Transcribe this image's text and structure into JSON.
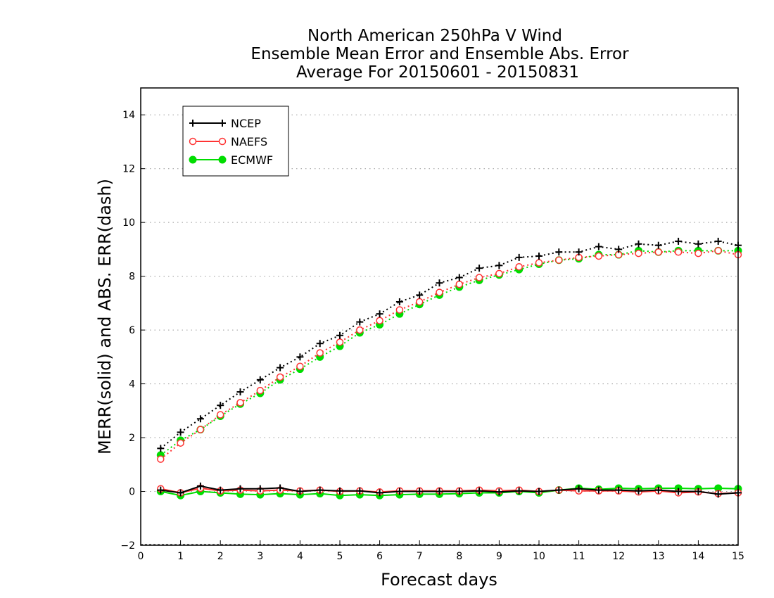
{
  "chart_data": {
    "type": "line",
    "title": [
      "North American 250hPa V Wind",
      "Ensemble Mean Error and Ensemble Abs. Error",
      "Average For 20150601 - 20150831"
    ],
    "xlabel": "Forecast days",
    "ylabel": "MERR(solid) and ABS. ERR(dash)",
    "xlim": [
      0,
      15
    ],
    "ylim": [
      -2,
      15
    ],
    "xticks": [
      0,
      1,
      2,
      3,
      4,
      5,
      6,
      7,
      8,
      9,
      10,
      11,
      12,
      13,
      14,
      15
    ],
    "yticks": [
      -2,
      0,
      2,
      4,
      6,
      8,
      10,
      12,
      14
    ],
    "grid": "horizontal dotted",
    "legend_position": "top-left",
    "x": [
      0.5,
      1,
      1.5,
      2,
      2.5,
      3,
      3.5,
      4,
      4.5,
      5,
      5.5,
      6,
      6.5,
      7,
      7.5,
      8,
      8.5,
      9,
      9.5,
      10,
      10.5,
      11,
      11.5,
      12,
      12.5,
      13,
      13.5,
      14,
      14.5,
      15
    ],
    "series": [
      {
        "name": "NCEP",
        "color": "#000000",
        "marker": "plus",
        "mean_error": [
          0.05,
          -0.05,
          0.2,
          0.05,
          0.1,
          0.1,
          0.13,
          0.0,
          0.05,
          0.02,
          0.02,
          -0.05,
          0.0,
          0.0,
          0.0,
          0.0,
          0.02,
          -0.02,
          0.02,
          0.0,
          0.05,
          0.1,
          0.05,
          0.05,
          0.02,
          0.05,
          0.0,
          0.0,
          -0.1,
          -0.05
        ],
        "abs_error": [
          1.6,
          2.2,
          2.7,
          3.2,
          3.7,
          4.15,
          4.6,
          5.0,
          5.5,
          5.8,
          6.3,
          6.6,
          7.05,
          7.3,
          7.75,
          7.95,
          8.3,
          8.4,
          8.7,
          8.75,
          8.9,
          8.9,
          9.1,
          9.0,
          9.2,
          9.15,
          9.3,
          9.2,
          9.3,
          9.15
        ]
      },
      {
        "name": "NAEFS",
        "color": "#ff3333",
        "marker": "open-circle",
        "mean_error": [
          0.1,
          -0.05,
          0.12,
          0.02,
          0.05,
          0.02,
          0.05,
          0.02,
          0.05,
          0.0,
          0.02,
          -0.02,
          0.02,
          0.02,
          0.02,
          0.02,
          0.05,
          0.02,
          0.05,
          0.0,
          0.05,
          0.02,
          0.02,
          0.02,
          -0.02,
          0.02,
          -0.05,
          -0.02,
          -0.08,
          -0.05
        ],
        "abs_error": [
          1.2,
          1.8,
          2.3,
          2.85,
          3.3,
          3.75,
          4.25,
          4.65,
          5.15,
          5.55,
          6.0,
          6.35,
          6.75,
          7.05,
          7.4,
          7.7,
          7.95,
          8.1,
          8.35,
          8.5,
          8.6,
          8.7,
          8.75,
          8.8,
          8.85,
          8.9,
          8.9,
          8.85,
          8.95,
          8.8
        ]
      },
      {
        "name": "ECMWF",
        "color": "#00dd00",
        "marker": "filled-circle",
        "mean_error": [
          0.0,
          -0.15,
          0.0,
          -0.05,
          -0.1,
          -0.12,
          -0.08,
          -0.12,
          -0.08,
          -0.15,
          -0.12,
          -0.15,
          -0.12,
          -0.1,
          -0.1,
          -0.08,
          -0.05,
          -0.05,
          0.0,
          -0.05,
          0.05,
          0.12,
          0.08,
          0.12,
          0.1,
          0.12,
          0.12,
          0.1,
          0.12,
          0.1
        ],
        "abs_error": [
          1.35,
          1.9,
          2.3,
          2.8,
          3.25,
          3.65,
          4.15,
          4.55,
          5.0,
          5.4,
          5.9,
          6.2,
          6.6,
          6.95,
          7.3,
          7.6,
          7.85,
          8.05,
          8.25,
          8.45,
          8.6,
          8.65,
          8.8,
          8.8,
          8.95,
          8.9,
          8.95,
          8.95,
          8.95,
          8.95
        ]
      }
    ]
  }
}
